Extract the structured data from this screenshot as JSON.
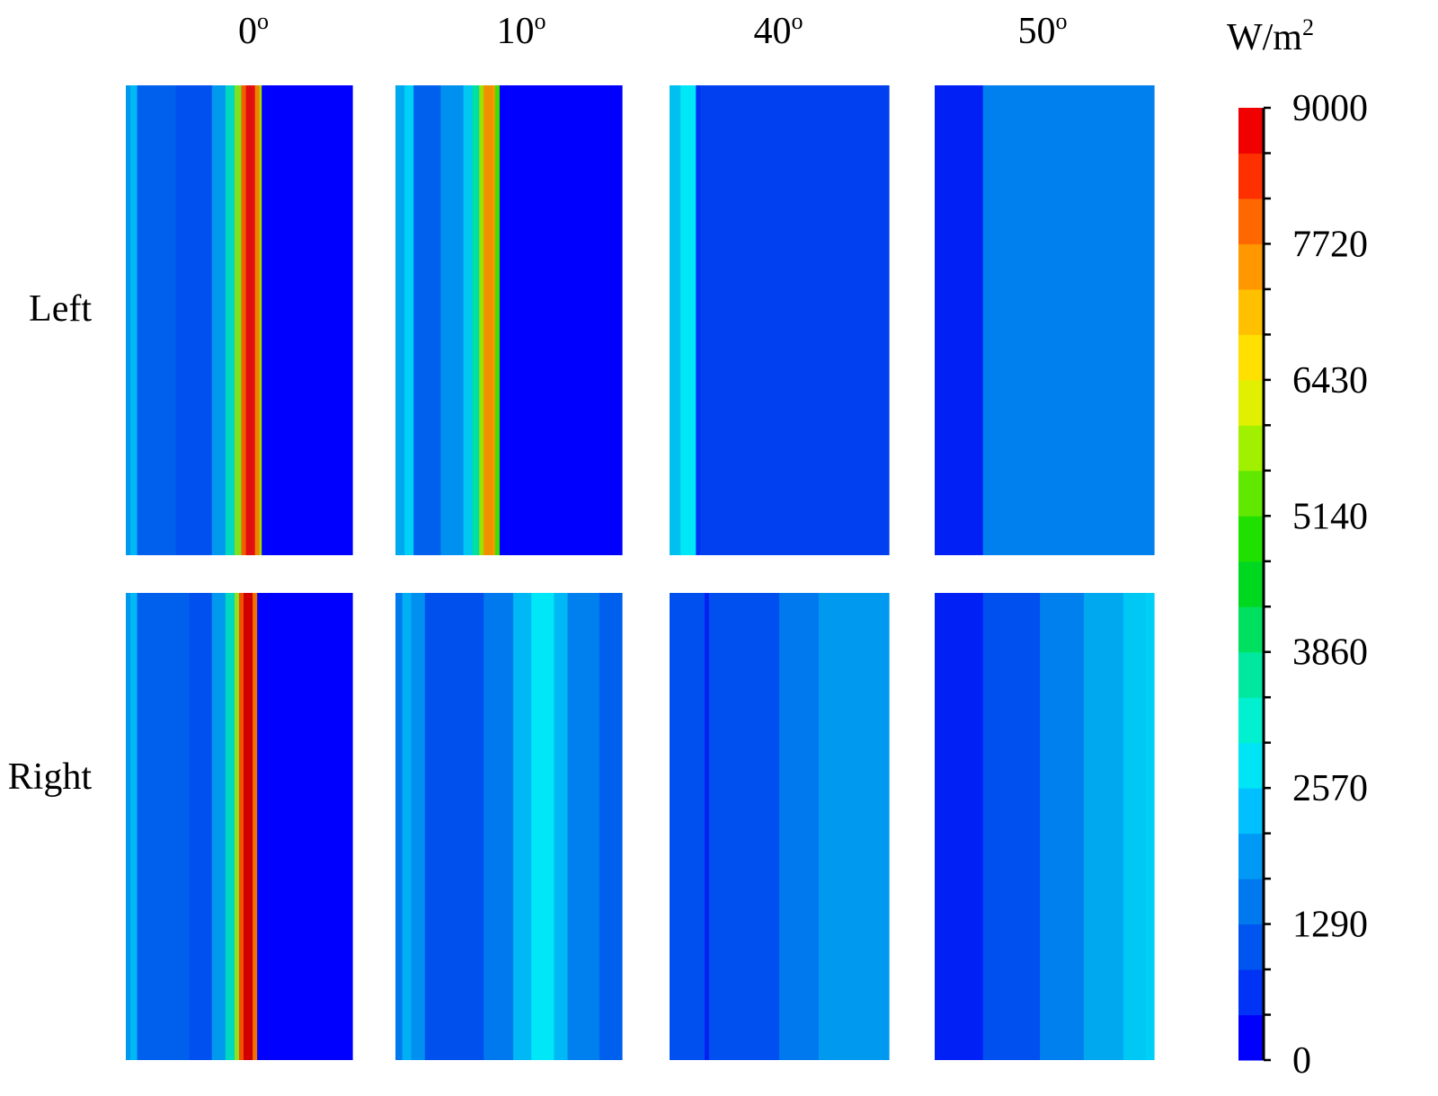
{
  "chart_data": {
    "type": "heatmap",
    "unit": "W/m²",
    "unit_base": "W/m",
    "unit_sup": "2",
    "columns": [
      {
        "value": "0",
        "sup": "o"
      },
      {
        "value": "10",
        "sup": "o"
      },
      {
        "value": "40",
        "sup": "o"
      },
      {
        "value": "50",
        "sup": "o"
      }
    ],
    "rows": [
      "Left",
      "Right"
    ],
    "colorbar": {
      "min": 0,
      "max": 9000,
      "tick_labels": [
        "9000",
        "7720",
        "6430",
        "5140",
        "3860",
        "2570",
        "1290",
        "0"
      ],
      "levels": 21,
      "colors": [
        "#0000ff",
        "#0033f5",
        "#0055f0",
        "#0078ee",
        "#0099f5",
        "#00c0ff",
        "#00e5f5",
        "#00f0d0",
        "#00e8a0",
        "#00e060",
        "#00d820",
        "#20e000",
        "#60e800",
        "#a0f000",
        "#e0f000",
        "#ffe000",
        "#ffc000",
        "#ff9800",
        "#ff6800",
        "#ff3000",
        "#f00000"
      ]
    },
    "panels": [
      {
        "row": "Left",
        "col": "0",
        "bands": [
          [
            0,
            "#0099ee"
          ],
          [
            0.02,
            "#00b8f5"
          ],
          [
            0.05,
            "#0060ee"
          ],
          [
            0.22,
            "#0050f0"
          ],
          [
            0.38,
            "#0099ee"
          ],
          [
            0.44,
            "#00d8c0"
          ],
          [
            0.48,
            "#80e020"
          ],
          [
            0.51,
            "#f06000"
          ],
          [
            0.53,
            "#e01010"
          ],
          [
            0.57,
            "#f08000"
          ],
          [
            0.59,
            "#a0e000"
          ],
          [
            0.6,
            "#0000ff"
          ]
        ]
      },
      {
        "row": "Left",
        "col": "10",
        "bands": [
          [
            0,
            "#00a8f0"
          ],
          [
            0.04,
            "#00d0f8"
          ],
          [
            0.08,
            "#0060ee"
          ],
          [
            0.2,
            "#0090f0"
          ],
          [
            0.3,
            "#00c8f0"
          ],
          [
            0.34,
            "#00e0a0"
          ],
          [
            0.37,
            "#a0e000"
          ],
          [
            0.39,
            "#f09000"
          ],
          [
            0.43,
            "#f0a000"
          ],
          [
            0.44,
            "#40e000"
          ],
          [
            0.46,
            "#0000ff"
          ]
        ]
      },
      {
        "row": "Left",
        "col": "40",
        "bands": [
          [
            0,
            "#00c0f0"
          ],
          [
            0.05,
            "#00e8f8"
          ],
          [
            0.12,
            "#0030f2"
          ],
          [
            0.14,
            "#0040f0"
          ]
        ]
      },
      {
        "row": "Left",
        "col": "50",
        "bands": [
          [
            0,
            "#0020f5"
          ],
          [
            0.22,
            "#0080ee"
          ]
        ]
      },
      {
        "row": "Right",
        "col": "0",
        "bands": [
          [
            0,
            "#0099ee"
          ],
          [
            0.02,
            "#00b8f5"
          ],
          [
            0.05,
            "#0060ee"
          ],
          [
            0.28,
            "#0050f0"
          ],
          [
            0.38,
            "#0099ee"
          ],
          [
            0.44,
            "#00d8c0"
          ],
          [
            0.48,
            "#90e020"
          ],
          [
            0.5,
            "#f05000"
          ],
          [
            0.52,
            "#d00000"
          ],
          [
            0.56,
            "#f07000"
          ],
          [
            0.58,
            "#0000ff"
          ]
        ]
      },
      {
        "row": "Right",
        "col": "10",
        "bands": [
          [
            0,
            "#0078ee"
          ],
          [
            0.03,
            "#00b0f5"
          ],
          [
            0.07,
            "#0090f0"
          ],
          [
            0.13,
            "#0050ee"
          ],
          [
            0.39,
            "#0078ee"
          ],
          [
            0.52,
            "#00b8f5"
          ],
          [
            0.6,
            "#00e8f8"
          ],
          [
            0.7,
            "#00b8f5"
          ],
          [
            0.76,
            "#0080ee"
          ],
          [
            0.9,
            "#0060ee"
          ]
        ]
      },
      {
        "row": "Right",
        "col": "40",
        "bands": [
          [
            0,
            "#0050f0"
          ],
          [
            0.16,
            "#0020f2"
          ],
          [
            0.18,
            "#0050f0"
          ],
          [
            0.5,
            "#0078ee"
          ],
          [
            0.68,
            "#0099f0"
          ]
        ]
      },
      {
        "row": "Right",
        "col": "50",
        "bands": [
          [
            0,
            "#0020f5"
          ],
          [
            0.22,
            "#0050f0"
          ],
          [
            0.48,
            "#0080ee"
          ],
          [
            0.68,
            "#00a8f0"
          ],
          [
            0.86,
            "#00c8f5"
          ],
          [
            0.96,
            "#00d0f8"
          ]
        ]
      }
    ]
  }
}
